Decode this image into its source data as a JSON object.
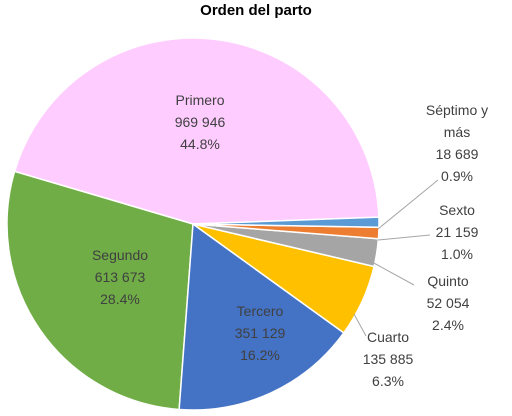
{
  "chart_data": {
    "type": "pie",
    "title": "Orden del parto",
    "categories": [
      "Primero",
      "Segundo",
      "Tercero",
      "Cuarto",
      "Quinto",
      "Sexto",
      "Séptimo y más"
    ],
    "values": [
      969946,
      613673,
      351129,
      135885,
      52054,
      21159,
      18689
    ],
    "value_labels": [
      "969 946",
      "613 673",
      "351 129",
      "135 885",
      "52 054",
      "21 159",
      "18 689"
    ],
    "percent_labels": [
      "44.8%",
      "28.4%",
      "16.2%",
      "6.3%",
      "2.4%",
      "1.0%",
      "0.9%"
    ],
    "colors": [
      "#ffccff",
      "#70ad47",
      "#4472c4",
      "#ffc000",
      "#a5a5a5",
      "#ed7d31",
      "#5b9bd5"
    ]
  }
}
